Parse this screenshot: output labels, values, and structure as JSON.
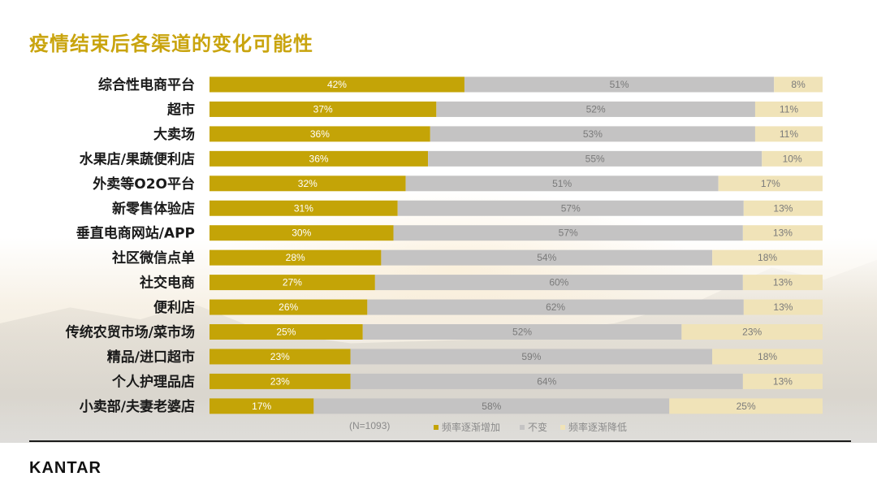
{
  "title": "疫情结束后各渠道的变化可能性",
  "footer": {
    "sample_note": "(N=1093)",
    "brand": "KANTAR"
  },
  "colors": {
    "increase": "#c4a407",
    "unchanged": "#c4c3c3",
    "decrease": "#f0e3b8",
    "title": "#c9a40e"
  },
  "chart_data": {
    "type": "bar",
    "orientation": "horizontal",
    "stacked": true,
    "percent_stacked": true,
    "title": "疫情结束后各渠道的变化可能性",
    "categories": [
      "综合性电商平台",
      "超市",
      "大卖场",
      "水果店/果蔬便利店",
      "外卖等O2O平台",
      "新零售体验店",
      "垂直电商网站/APP",
      "社区微信点单",
      "社交电商",
      "便利店",
      "传统农贸市场/菜市场",
      "精品/进口超市",
      "个人护理品店",
      "小卖部/夫妻老婆店"
    ],
    "series": [
      {
        "name": "频率逐渐增加",
        "values": [
          42,
          37,
          36,
          36,
          32,
          31,
          30,
          28,
          27,
          26,
          25,
          23,
          23,
          17
        ]
      },
      {
        "name": "不变",
        "values": [
          51,
          52,
          53,
          55,
          51,
          57,
          57,
          54,
          60,
          62,
          52,
          59,
          64,
          58
        ]
      },
      {
        "name": "频率逐渐降低",
        "values": [
          8,
          11,
          11,
          10,
          17,
          13,
          13,
          18,
          13,
          13,
          23,
          18,
          13,
          25
        ]
      }
    ],
    "value_format": "percent",
    "legend_position": "bottom",
    "grid": false
  }
}
